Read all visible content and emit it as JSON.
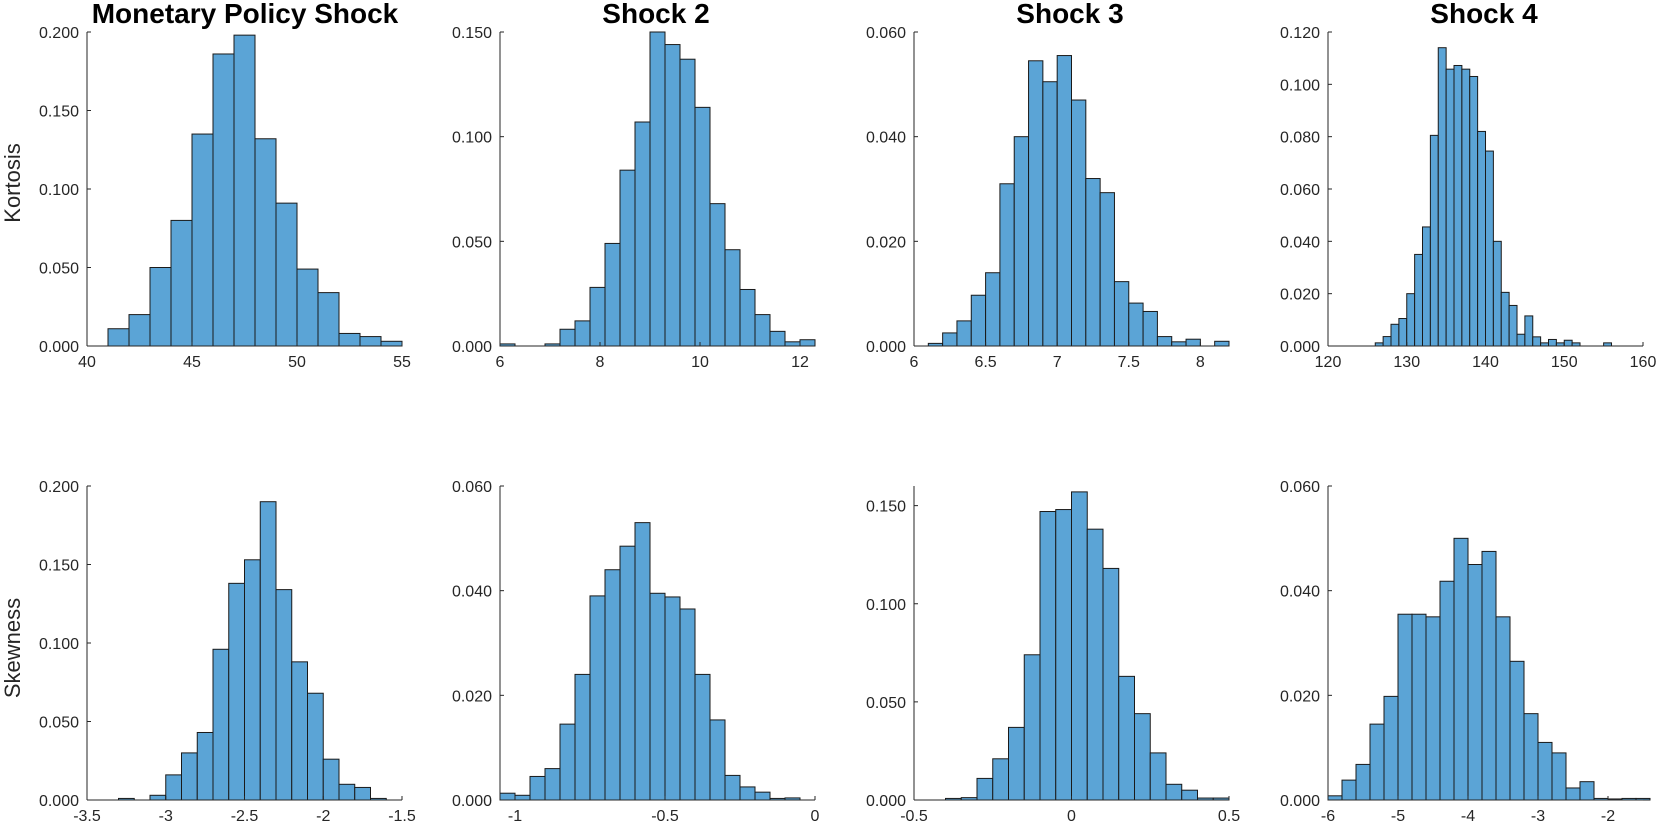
{
  "figure": {
    "row_labels": [
      "Kortosis",
      "Skewness"
    ],
    "column_titles": [
      "Monetary Policy Shock",
      "Shock 2",
      "Shock 3",
      "Shock 4"
    ]
  },
  "colors": {
    "bar_fill": "#5ba4d6",
    "bar_edge": "#1a1a1a",
    "axis": "#262626"
  },
  "chart_data": [
    {
      "type": "bar",
      "id": "kurt-mp",
      "row": "Kortosis",
      "title": "Monetary Policy Shock",
      "x_range": [
        40,
        55
      ],
      "x_ticks": [
        "40",
        "45",
        "50",
        "55"
      ],
      "x_tick_values": [
        40,
        45,
        50,
        55
      ],
      "y_range": [
        0,
        0.2
      ],
      "y_ticks": [
        "0.000",
        "0.050",
        "0.100",
        "0.150",
        "0.200"
      ],
      "y_tick_values": [
        0,
        0.05,
        0.1,
        0.15,
        0.2
      ],
      "bin_start": 41,
      "bin_width": 1,
      "values": [
        0.011,
        0.02,
        0.05,
        0.08,
        0.135,
        0.186,
        0.198,
        0.132,
        0.091,
        0.049,
        0.034,
        0.008,
        0.006,
        0.003
      ]
    },
    {
      "type": "bar",
      "id": "kurt-s2",
      "row": "Kortosis",
      "title": "Shock 2",
      "x_range": [
        6,
        12.3
      ],
      "x_ticks": [
        "6",
        "8",
        "10",
        "12"
      ],
      "x_tick_values": [
        6,
        8,
        10,
        12
      ],
      "y_range": [
        0,
        0.15
      ],
      "y_ticks": [
        "0.000",
        "0.050",
        "0.100",
        "0.150"
      ],
      "y_tick_values": [
        0,
        0.05,
        0.1,
        0.15
      ],
      "bin_start": 6,
      "bin_width": 0.3,
      "values": [
        0.001,
        0,
        0,
        0.001,
        0.008,
        0.012,
        0.028,
        0.049,
        0.084,
        0.107,
        0.15,
        0.144,
        0.137,
        0.114,
        0.068,
        0.046,
        0.027,
        0.015,
        0.007,
        0.002,
        0.003
      ]
    },
    {
      "type": "bar",
      "id": "kurt-s3",
      "row": "Kortosis",
      "title": "Shock 3",
      "x_range": [
        6,
        8.2
      ],
      "x_ticks": [
        "6",
        "6.5",
        "7",
        "7.5",
        "8"
      ],
      "x_tick_values": [
        6,
        6.5,
        7,
        7.5,
        8
      ],
      "y_range": [
        0,
        0.06
      ],
      "y_ticks": [
        "0.000",
        "0.020",
        "0.040",
        "0.060"
      ],
      "y_tick_values": [
        0,
        0.02,
        0.04,
        0.06
      ],
      "bin_start": 6.1,
      "bin_width": 0.1,
      "values": [
        0.0005,
        0.0025,
        0.0048,
        0.0097,
        0.014,
        0.031,
        0.04,
        0.0545,
        0.0505,
        0.0555,
        0.047,
        0.032,
        0.0293,
        0.0123,
        0.0082,
        0.0066,
        0.0018,
        0.0008,
        0.0013,
        0,
        0.0009
      ]
    },
    {
      "type": "bar",
      "id": "kurt-s4",
      "row": "Kortosis",
      "title": "Shock 4",
      "x_range": [
        120,
        160
      ],
      "x_ticks": [
        "120",
        "130",
        "140",
        "150",
        "160"
      ],
      "x_tick_values": [
        120,
        130,
        140,
        150,
        160
      ],
      "y_range": [
        0,
        0.12
      ],
      "y_ticks": [
        "0.000",
        "0.020",
        "0.040",
        "0.060",
        "0.080",
        "0.100",
        "0.120"
      ],
      "y_tick_values": [
        0,
        0.02,
        0.04,
        0.06,
        0.08,
        0.1,
        0.12
      ],
      "bin_start": 126,
      "bin_width": 1,
      "values": [
        0.0012,
        0.0036,
        0.0083,
        0.0105,
        0.02,
        0.035,
        0.0455,
        0.0805,
        0.114,
        0.1058,
        0.1072,
        0.1058,
        0.103,
        0.082,
        0.0745,
        0.04,
        0.0205,
        0.0155,
        0.0045,
        0.0115,
        0.0035,
        0.0012,
        0.0025,
        0.0012,
        0.0022,
        0.0012,
        0,
        0,
        0,
        0.0012
      ]
    },
    {
      "type": "bar",
      "id": "skew-mp",
      "row": "Skewness",
      "title": "",
      "x_range": [
        -3.5,
        -1.5
      ],
      "x_ticks": [
        "-3.5",
        "-3",
        "-2.5",
        "-2",
        "-1.5"
      ],
      "x_tick_values": [
        -3.5,
        -3,
        -2.5,
        -2,
        -1.5
      ],
      "y_range": [
        0,
        0.2
      ],
      "y_ticks": [
        "0.000",
        "0.050",
        "0.100",
        "0.150",
        "0.200"
      ],
      "y_tick_values": [
        0,
        0.05,
        0.1,
        0.15,
        0.2
      ],
      "bin_start": -3.3,
      "bin_width": 0.1,
      "values": [
        0.001,
        0,
        0.003,
        0.016,
        0.03,
        0.043,
        0.096,
        0.138,
        0.153,
        0.19,
        0.134,
        0.088,
        0.068,
        0.026,
        0.01,
        0.008,
        0.001
      ]
    },
    {
      "type": "bar",
      "id": "skew-s2",
      "row": "Skewness",
      "title": "",
      "x_range": [
        -1.05,
        0
      ],
      "x_ticks": [
        "-1",
        "-0.5",
        "0"
      ],
      "x_tick_values": [
        -1,
        -0.5,
        0
      ],
      "y_range": [
        0,
        0.06
      ],
      "y_ticks": [
        "0.000",
        "0.020",
        "0.040",
        "0.060"
      ],
      "y_tick_values": [
        0,
        0.02,
        0.04,
        0.06
      ],
      "bin_start": -1.05,
      "bin_width": 0.05,
      "values": [
        0.0013,
        0.0009,
        0.0045,
        0.006,
        0.0145,
        0.024,
        0.039,
        0.044,
        0.0485,
        0.053,
        0.0395,
        0.0388,
        0.0365,
        0.024,
        0.0153,
        0.0047,
        0.0025,
        0.0015,
        0.0003,
        0.0004
      ]
    },
    {
      "type": "bar",
      "id": "skew-s3",
      "row": "Skewness",
      "title": "",
      "x_range": [
        -0.5,
        0.5
      ],
      "x_ticks": [
        "-0.5",
        "0",
        "0.5"
      ],
      "x_tick_values": [
        -0.5,
        0,
        0.5
      ],
      "y_range": [
        0,
        0.16
      ],
      "y_ticks": [
        "0.000",
        "0.050",
        "0.100",
        "0.150"
      ],
      "y_tick_values": [
        0,
        0.05,
        0.1,
        0.15
      ],
      "bin_start": -0.4,
      "bin_width": 0.05,
      "values": [
        0.0008,
        0.0012,
        0.011,
        0.021,
        0.037,
        0.074,
        0.147,
        0.148,
        0.157,
        0.138,
        0.118,
        0.063,
        0.044,
        0.024,
        0.008,
        0.005,
        0.001,
        0.001
      ]
    },
    {
      "type": "bar",
      "id": "skew-s4",
      "row": "Skewness",
      "title": "",
      "x_range": [
        -6,
        -1.5
      ],
      "x_ticks": [
        "-6",
        "-5",
        "-4",
        "-3",
        "-2"
      ],
      "x_tick_values": [
        -6,
        -5,
        -4,
        -3,
        -2
      ],
      "y_range": [
        0,
        0.06
      ],
      "y_ticks": [
        "0.000",
        "0.020",
        "0.040",
        "0.060"
      ],
      "y_tick_values": [
        0,
        0.02,
        0.04,
        0.06
      ],
      "bin_start": -6,
      "bin_width": 0.2,
      "values": [
        0.0008,
        0.0038,
        0.0068,
        0.0145,
        0.0198,
        0.0355,
        0.0355,
        0.035,
        0.0418,
        0.05,
        0.045,
        0.0475,
        0.035,
        0.0265,
        0.0165,
        0.011,
        0.009,
        0.0023,
        0.0035,
        0.0003,
        0.0002,
        0.0003,
        0.0003
      ]
    }
  ]
}
